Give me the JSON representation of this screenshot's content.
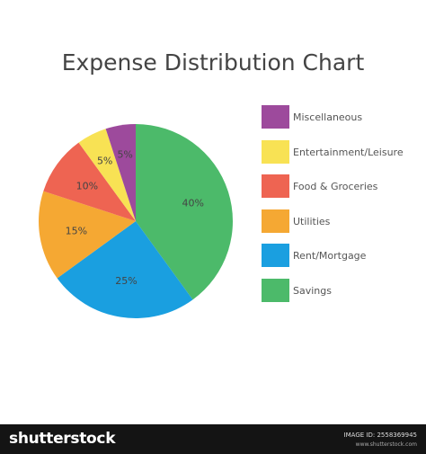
{
  "chart_data": {
    "type": "pie",
    "title": "Expense Distribution Chart",
    "slices": [
      {
        "label": "Savings",
        "value": 40,
        "value_label": "40%",
        "color": "#4cba6a"
      },
      {
        "label": "Rent/Mortgage",
        "value": 25,
        "value_label": "25%",
        "color": "#1a9fe0"
      },
      {
        "label": "Utilities",
        "value": 15,
        "value_label": "15%",
        "color": "#f5a833"
      },
      {
        "label": "Food & Groceries",
        "value": 10,
        "value_label": "10%",
        "color": "#ee6452"
      },
      {
        "label": "Entertainment/Leisure",
        "value": 5,
        "value_label": "5%",
        "color": "#f8e254"
      },
      {
        "label": "Miscellaneous",
        "value": 5,
        "value_label": "5%",
        "color": "#9d4a9c"
      }
    ],
    "legend": {
      "placement": "right",
      "items": [
        {
          "label": "Miscellaneous",
          "color": "#9d4a9c"
        },
        {
          "label": "Entertainment/Leisure",
          "color": "#f8e254"
        },
        {
          "label": "Food & Groceries",
          "color": "#ee6452"
        },
        {
          "label": "Utilities",
          "color": "#f5a833"
        },
        {
          "label": "Rent/Mortgage",
          "color": "#1a9fe0"
        },
        {
          "label": "Savings",
          "color": "#4cba6a"
        }
      ]
    }
  },
  "footer": {
    "brand": "shutterstock",
    "image_id": "IMAGE ID: 2558369945",
    "site": "www.shutterstock.com"
  }
}
